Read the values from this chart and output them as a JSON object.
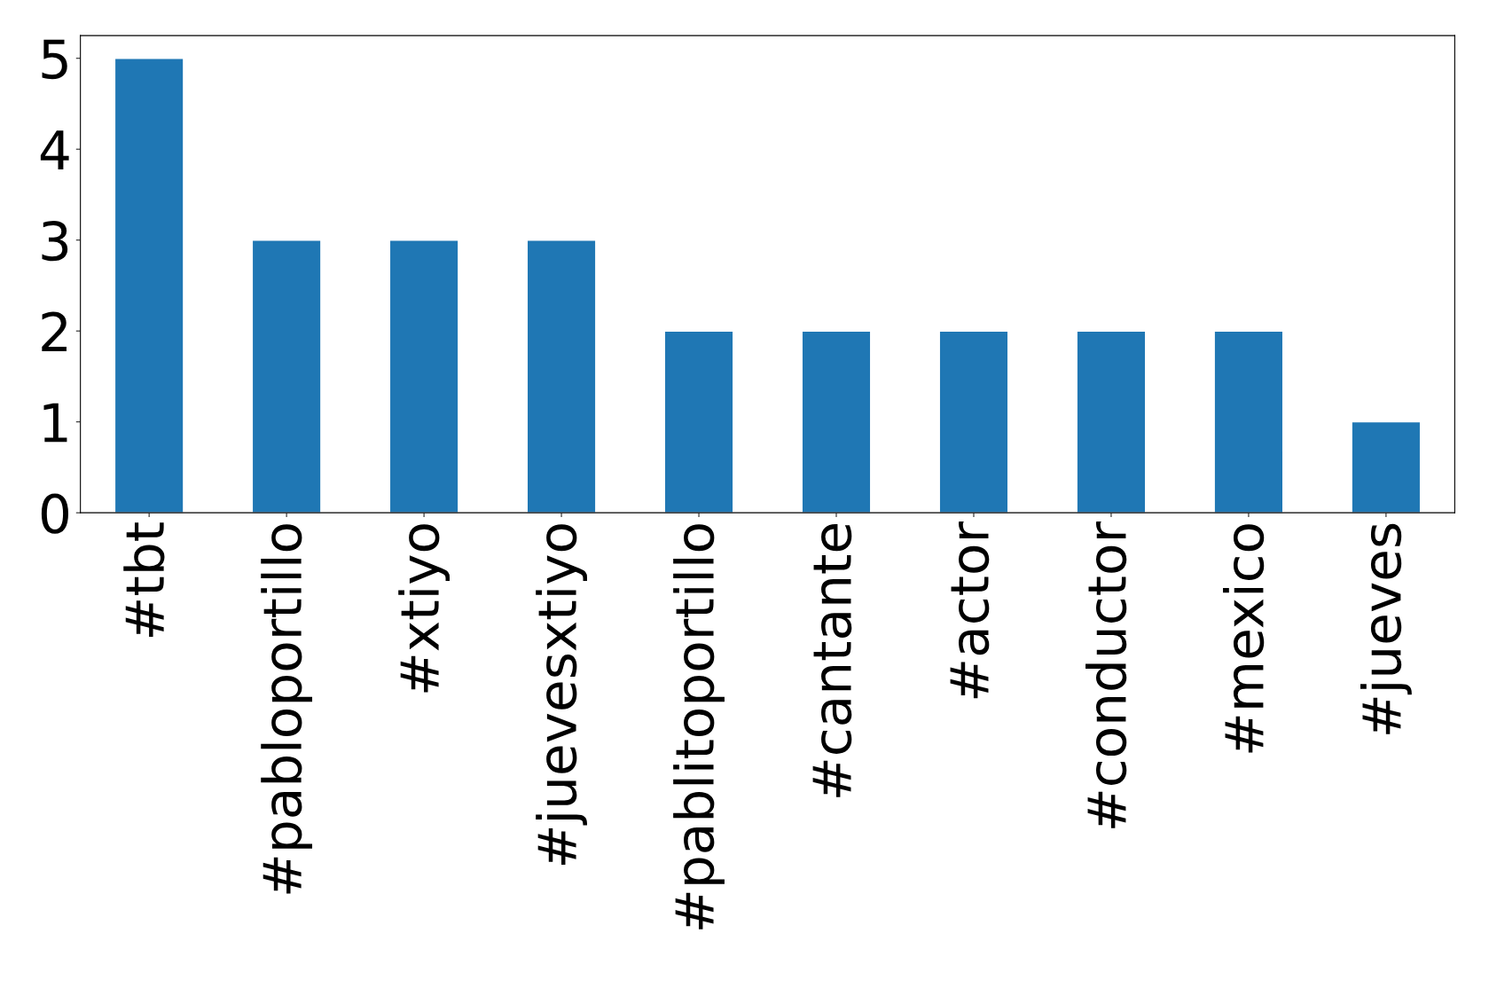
{
  "chart_data": {
    "type": "bar",
    "categories": [
      "#tbt",
      "#pabloportillo",
      "#xtiyo",
      "#juevesxtiyo",
      "#pablitoportillo",
      "#cantante",
      "#actor",
      "#conductor",
      "#mexico",
      "#jueves"
    ],
    "values": [
      5,
      3,
      3,
      3,
      2,
      2,
      2,
      2,
      2,
      1
    ],
    "color": "#1f77b4",
    "ylim": [
      0,
      5.25
    ],
    "yticks": [
      0,
      1,
      2,
      3,
      4,
      5
    ],
    "grid": false
  }
}
